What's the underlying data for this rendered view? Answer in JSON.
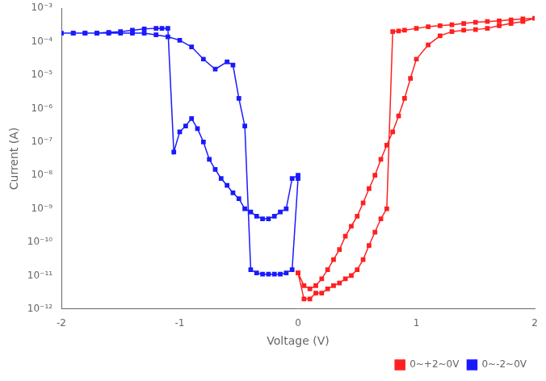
{
  "chart_data": {
    "type": "line",
    "xlabel": "Voltage (V)",
    "ylabel": "Current (A)",
    "log": "y",
    "xlim": [
      -2,
      2
    ],
    "ylim": [
      1e-12,
      0.001
    ],
    "xticks": [
      -2,
      -1,
      0,
      1,
      2
    ],
    "yticks": [
      {
        "value": 1e-12,
        "label": "10⁻¹²"
      },
      {
        "value": 1e-11,
        "label": "10⁻¹¹"
      },
      {
        "value": 1e-10,
        "label": "10⁻¹⁰"
      },
      {
        "value": 1e-09,
        "label": "10⁻⁹"
      },
      {
        "value": 1e-08,
        "label": "10⁻⁸"
      },
      {
        "value": 1e-07,
        "label": "10⁻⁷"
      },
      {
        "value": 1e-06,
        "label": "10⁻⁶"
      },
      {
        "value": 1e-05,
        "label": "10⁻⁵"
      },
      {
        "value": 0.0001,
        "label": "10⁻⁴"
      },
      {
        "value": 0.001,
        "label": "10⁻³"
      }
    ],
    "grid": false,
    "legend": "lower right",
    "series": [
      {
        "name": "0~+2~0V",
        "color": "#ff2020",
        "marker": "square",
        "line_style": "solid",
        "x": [
          0.0,
          0.05,
          0.1,
          0.15,
          0.2,
          0.25,
          0.3,
          0.35,
          0.4,
          0.45,
          0.5,
          0.55,
          0.6,
          0.65,
          0.7,
          0.75,
          0.8,
          0.85,
          0.9,
          0.95,
          1.0,
          1.1,
          1.2,
          1.3,
          1.4,
          1.5,
          1.6,
          1.7,
          1.8,
          1.9,
          2.0,
          1.9,
          1.8,
          1.7,
          1.6,
          1.5,
          1.4,
          1.3,
          1.2,
          1.1,
          1.0,
          0.9,
          0.85,
          0.8,
          0.75,
          0.7,
          0.65,
          0.6,
          0.55,
          0.5,
          0.45,
          0.4,
          0.35,
          0.3,
          0.25,
          0.2,
          0.15,
          0.1,
          0.05,
          0.0
        ],
        "values": [
          1.2e-11,
          5e-12,
          4e-12,
          5e-12,
          8e-12,
          1.5e-11,
          3e-11,
          6e-11,
          1.5e-10,
          3e-10,
          6e-10,
          1.5e-09,
          4e-09,
          1e-08,
          3e-08,
          8e-08,
          2e-07,
          6e-07,
          2e-06,
          8e-06,
          3e-05,
          8e-05,
          0.00015,
          0.0002,
          0.00022,
          0.00023,
          0.00025,
          0.0003,
          0.00035,
          0.0004,
          0.0005,
          0.00048,
          0.00045,
          0.00042,
          0.0004,
          0.00038,
          0.00035,
          0.00032,
          0.0003,
          0.00028,
          0.00025,
          0.00022,
          0.00021,
          0.0002,
          1e-09,
          5e-10,
          2e-10,
          8e-11,
          3e-11,
          1.5e-11,
          1e-11,
          8e-12,
          6e-12,
          5e-12,
          4e-12,
          3e-12,
          3e-12,
          2e-12,
          2e-12,
          1.2e-11
        ]
      },
      {
        "name": "0~-2~0V",
        "color": "#1a1aff",
        "marker": "square",
        "line_style": "solid",
        "x": [
          0.0,
          -0.05,
          -0.1,
          -0.15,
          -0.2,
          -0.25,
          -0.3,
          -0.35,
          -0.4,
          -0.45,
          -0.5,
          -0.55,
          -0.6,
          -0.65,
          -0.7,
          -0.75,
          -0.8,
          -0.85,
          -0.9,
          -0.95,
          -1.0,
          -1.05,
          -1.1,
          -1.15,
          -1.2,
          -1.3,
          -1.4,
          -1.5,
          -1.6,
          -1.7,
          -1.8,
          -1.9,
          -2.0,
          -1.9,
          -1.8,
          -1.7,
          -1.6,
          -1.5,
          -1.4,
          -1.3,
          -1.2,
          -1.1,
          -1.0,
          -0.9,
          -0.8,
          -0.7,
          -0.6,
          -0.55,
          -0.5,
          -0.45,
          -0.4,
          -0.35,
          -0.3,
          -0.25,
          -0.2,
          -0.15,
          -0.1,
          -0.05,
          0.0
        ],
        "values": [
          1e-08,
          8e-09,
          1e-09,
          8e-10,
          6e-10,
          5e-10,
          5e-10,
          6e-10,
          8e-10,
          1e-09,
          2e-09,
          3e-09,
          5e-09,
          8e-09,
          1.5e-08,
          3e-08,
          1e-07,
          2.5e-07,
          5e-07,
          3e-07,
          2e-07,
          5e-08,
          0.00025,
          0.00025,
          0.00025,
          0.00024,
          0.00022,
          0.0002,
          0.00019,
          0.00018,
          0.00018,
          0.00018,
          0.00018,
          0.00018,
          0.00018,
          0.00018,
          0.00018,
          0.00018,
          0.00018,
          0.00018,
          0.00016,
          0.00014,
          0.00011,
          7e-05,
          3e-05,
          1.5e-05,
          2.5e-05,
          2e-05,
          2e-06,
          3e-07,
          1.5e-11,
          1.2e-11,
          1.1e-11,
          1.1e-11,
          1.1e-11,
          1.1e-11,
          1.2e-11,
          1.5e-11,
          8e-09
        ]
      }
    ]
  }
}
